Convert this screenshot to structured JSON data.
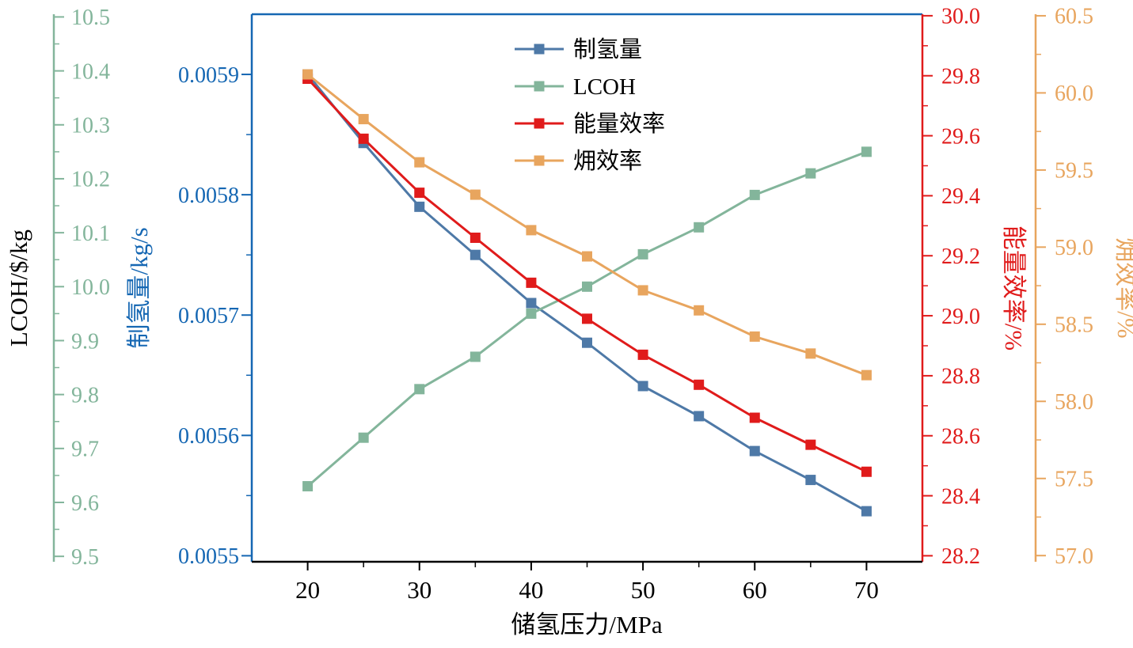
{
  "chart_data": {
    "type": "line",
    "title": "",
    "x_label": "储氢压力/MPa",
    "x": [
      20,
      25,
      30,
      35,
      40,
      45,
      50,
      55,
      60,
      65,
      70
    ],
    "x_range": [
      15,
      75
    ],
    "x_major_ticks": [
      20,
      30,
      40,
      50,
      60,
      70
    ],
    "x_minor_ticks": [
      25,
      35,
      45,
      55,
      65
    ],
    "grid": false,
    "axes": [
      {
        "id": "lcoh",
        "title": "LCOH/$/kg",
        "title_color": "#000000",
        "color": "#83b59b",
        "range": [
          9.49,
          10.505
        ],
        "tick_min": 9.5,
        "tick_max": 10.5,
        "tick_step": 0.1,
        "decimals": 1,
        "position": "left-outer"
      },
      {
        "id": "hydrogen",
        "title": "制氢量/kg/s",
        "title_color": "#1567b3",
        "color": "#1567b3",
        "range": [
          0.005495,
          0.00595
        ],
        "tick_min": 0.0055,
        "tick_max": 0.0059,
        "tick_step": 0.0001,
        "decimals": 4,
        "position": "left-inner"
      },
      {
        "id": "energy",
        "title": "能量效率/%",
        "title_color": "#e01b1b",
        "color": "#e01b1b",
        "range": [
          28.18,
          30.005
        ],
        "tick_min": 28.2,
        "tick_max": 30.0,
        "tick_step": 0.2,
        "decimals": 1,
        "position": "right-inner"
      },
      {
        "id": "exergy",
        "title": "㶲效率/%",
        "title_color": "#e8a55e",
        "color": "#e8a55e",
        "range": [
          56.96,
          60.51
        ],
        "tick_min": 57.0,
        "tick_max": 60.5,
        "tick_step": 0.5,
        "decimals": 1,
        "position": "right-outer"
      }
    ],
    "series": [
      {
        "name": "制氢量",
        "axis": "hydrogen",
        "color": "#4e79a7",
        "values": [
          0.0059,
          0.005843,
          0.00579,
          0.00575,
          0.00571,
          0.005677,
          0.005641,
          0.005616,
          0.005587,
          0.005563,
          0.005537
        ]
      },
      {
        "name": "LCOH",
        "axis": "lcoh",
        "color": "#83b59b",
        "values": [
          9.63,
          9.72,
          9.81,
          9.87,
          9.95,
          10.0,
          10.06,
          10.11,
          10.17,
          10.21,
          10.25
        ]
      },
      {
        "name": "能量效率",
        "axis": "energy",
        "color": "#e01b1b",
        "values": [
          29.79,
          29.59,
          29.41,
          29.26,
          29.11,
          28.99,
          28.87,
          28.77,
          28.66,
          28.57,
          28.48
        ]
      },
      {
        "name": "㶲效率",
        "axis": "exergy",
        "color": "#e8a55e",
        "values": [
          60.12,
          59.83,
          59.55,
          59.34,
          59.11,
          58.94,
          58.72,
          58.59,
          58.42,
          58.31,
          58.17
        ]
      }
    ],
    "legend": {
      "position": "top-center",
      "items": [
        "制氢量",
        "LCOH",
        "能量效率",
        "㶲效率"
      ]
    }
  }
}
